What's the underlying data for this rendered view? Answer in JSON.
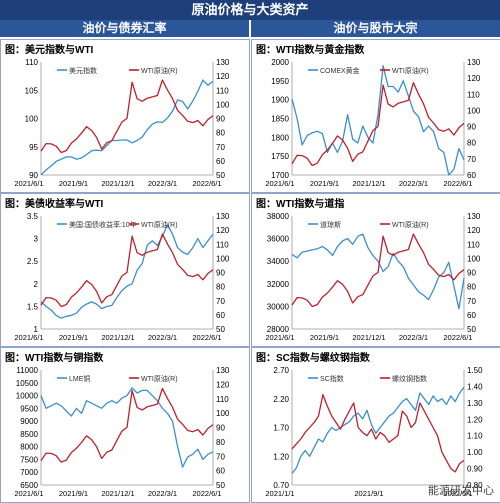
{
  "banner_title": "原油价格与大类资产",
  "sections": [
    "油价与债券汇率",
    "油价与股市大宗"
  ],
  "watermark": "能源研发中心",
  "colors": {
    "blue": "#3a8fd0",
    "red": "#c0202a"
  },
  "chart_data": [
    {
      "type": "line",
      "title": "图：美元指数与WTI",
      "x_ticks": [
        "2021/6/1",
        "2021/9/1",
        "2021/12/1",
        "2022/3/1",
        "2022/6/1"
      ],
      "left_ticks": [
        "110",
        "105",
        "100",
        "95",
        "90"
      ],
      "left_range": [
        90,
        110
      ],
      "right_ticks": [
        "130",
        "120",
        "110",
        "100",
        "90",
        "80",
        "70",
        "60",
        "50"
      ],
      "right_range": [
        50,
        130
      ],
      "series": [
        {
          "name": "美元指数",
          "axis": "left",
          "color": "blue",
          "values": [
            90.0,
            90.9,
            91.6,
            92.4,
            92.8,
            93.2,
            93.2,
            92.8,
            93.0,
            93.6,
            94.3,
            94.4,
            94.3,
            95.2,
            96.1,
            96.1,
            96.2,
            96.2,
            95.7,
            96.1,
            96.7,
            98.0,
            99.0,
            99.4,
            99.3,
            100.1,
            101.3,
            103.3,
            103.0,
            101.7,
            103.1,
            104.8,
            106.8,
            105.9,
            106.6
          ]
        },
        {
          "name": "WTI原油(R)",
          "axis": "right",
          "color": "red",
          "values": [
            66.9,
            72.2,
            72.0,
            70.4,
            65.9,
            67.3,
            72.6,
            75.5,
            79.6,
            84.2,
            81.6,
            76.6,
            68.4,
            72.9,
            74.3,
            81.0,
            87.5,
            90.1,
            115.7,
            104.0,
            102.2,
            104.4,
            105.3,
            106.3,
            117.2,
            110.1,
            104.1,
            95.7,
            92.2,
            88.0,
            87.1,
            88.6,
            84.8,
            89.3,
            92.0
          ]
        }
      ]
    },
    {
      "type": "line",
      "title": "图：WTI指数与黄金指数",
      "x_ticks": [
        "2021/6/1",
        "2021/9/1",
        "2021/12/1",
        "2022/3/1",
        "2022/6/1"
      ],
      "left_ticks": [
        "2000",
        "1950",
        "1900",
        "1850",
        "1800",
        "1750",
        "1700"
      ],
      "left_range": [
        1700,
        2000
      ],
      "right_ticks": [
        "130",
        "120",
        "110",
        "100",
        "90",
        "80",
        "70",
        "60"
      ],
      "right_range": [
        60,
        130
      ],
      "series": [
        {
          "name": "COMEX黄金",
          "axis": "left",
          "color": "blue",
          "values": [
            1902,
            1850,
            1780,
            1805,
            1812,
            1816,
            1810,
            1760,
            1785,
            1760,
            1790,
            1860,
            1795,
            1785,
            1830,
            1800,
            1785,
            1860,
            1990,
            1935,
            1935,
            1920,
            1950,
            1910,
            1870,
            1855,
            1815,
            1830,
            1815,
            1770,
            1760,
            1700,
            1715,
            1770,
            1740
          ]
        },
        {
          "name": "WTI原油(R)",
          "axis": "right",
          "color": "red",
          "values": [
            66.9,
            72.2,
            72.0,
            70.4,
            65.9,
            67.3,
            72.6,
            75.5,
            79.6,
            84.2,
            81.6,
            76.6,
            68.4,
            72.9,
            74.3,
            81.0,
            87.5,
            90.1,
            115.7,
            104.0,
            102.2,
            104.4,
            105.3,
            106.3,
            117.2,
            110.1,
            104.1,
            95.7,
            92.2,
            88.0,
            87.1,
            88.6,
            84.8,
            89.3,
            92.0
          ]
        }
      ]
    },
    {
      "type": "line",
      "title": "图：美债收益率与WTI",
      "x_ticks": [
        "2021/6/1",
        "2021/9/1",
        "2021/12/1",
        "2022/3/1",
        "2022/6/1"
      ],
      "left_ticks": [
        "3.5",
        "3",
        "2.5",
        "2",
        "1.5",
        "1"
      ],
      "left_range": [
        1,
        3.5
      ],
      "right_ticks": [
        "130",
        "120",
        "110",
        "100",
        "90",
        "80",
        "70",
        "60",
        "50"
      ],
      "right_range": [
        50,
        130
      ],
      "series": [
        {
          "name": "美国:国债收益率:10年",
          "axis": "left",
          "color": "blue",
          "values": [
            1.6,
            1.5,
            1.42,
            1.3,
            1.24,
            1.28,
            1.3,
            1.35,
            1.48,
            1.55,
            1.6,
            1.55,
            1.45,
            1.5,
            1.52,
            1.7,
            1.85,
            1.95,
            2.0,
            2.3,
            2.45,
            2.85,
            2.95,
            2.85,
            3.05,
            3.3,
            3.1,
            2.8,
            2.7,
            2.65,
            2.8,
            3.0,
            2.8,
            2.95,
            3.1
          ]
        },
        {
          "name": "WTI原油(R)",
          "axis": "right",
          "color": "red",
          "values": [
            66.9,
            72.2,
            72.0,
            70.4,
            65.9,
            67.3,
            72.6,
            75.5,
            79.6,
            84.2,
            81.6,
            76.6,
            68.4,
            72.9,
            74.3,
            81.0,
            87.5,
            90.1,
            115.7,
            104.0,
            102.2,
            104.4,
            105.3,
            106.3,
            117.2,
            110.1,
            104.1,
            95.7,
            92.2,
            88.0,
            87.1,
            88.6,
            84.8,
            89.3,
            92.0
          ]
        }
      ]
    },
    {
      "type": "line",
      "title": "图：WTI指数与道指",
      "x_ticks": [
        "2021/6/1",
        "2021/9/1",
        "2021/12/1",
        "2022/3/1",
        "2022/6/1"
      ],
      "left_ticks": [
        "38000",
        "36000",
        "34000",
        "32000",
        "30000",
        "28000"
      ],
      "left_range": [
        28000,
        38000
      ],
      "right_ticks": [
        "130",
        "120",
        "110",
        "100",
        "90",
        "80",
        "70",
        "60",
        "50"
      ],
      "right_range": [
        50,
        130
      ],
      "series": [
        {
          "name": "道琼斯",
          "axis": "left",
          "color": "blue",
          "values": [
            34600,
            34300,
            34800,
            34900,
            35000,
            35100,
            35300,
            35000,
            34500,
            35300,
            35800,
            36000,
            35500,
            36200,
            36400,
            35200,
            34500,
            34000,
            33100,
            33500,
            34700,
            34000,
            33500,
            32500,
            31900,
            31300,
            31000,
            30600,
            31500,
            32600,
            33000,
            33900,
            31800,
            29800,
            32500
          ]
        },
        {
          "name": "WTI原油(R)",
          "axis": "right",
          "color": "red",
          "values": [
            66.9,
            72.2,
            72.0,
            70.4,
            65.9,
            67.3,
            72.6,
            75.5,
            79.6,
            84.2,
            81.6,
            76.6,
            68.4,
            72.9,
            74.3,
            81.0,
            87.5,
            90.1,
            115.7,
            104.0,
            102.2,
            104.4,
            105.3,
            106.3,
            117.2,
            110.1,
            104.1,
            95.7,
            92.2,
            88.0,
            87.1,
            88.6,
            84.8,
            89.3,
            92.0
          ]
        }
      ]
    },
    {
      "type": "line",
      "title": "图：WTI指数与铜指数",
      "x_ticks": [
        "2021/6/1",
        "2021/9/1",
        "2021/12/1",
        "2022/3/1",
        "2022/6/1"
      ],
      "left_ticks": [
        "11000",
        "10500",
        "10000",
        "9500",
        "9000",
        "8500",
        "8000",
        "7500",
        "7000",
        "6500"
      ],
      "left_range": [
        6500,
        11000
      ],
      "right_ticks": [
        "130",
        "120",
        "110",
        "100",
        "90",
        "80",
        "70",
        "60",
        "50"
      ],
      "right_range": [
        50,
        130
      ],
      "series": [
        {
          "name": "LME铜",
          "axis": "left",
          "color": "blue",
          "values": [
            10000,
            9500,
            9600,
            9700,
            9600,
            9400,
            9200,
            9500,
            9300,
            9800,
            9700,
            9600,
            9500,
            9700,
            9800,
            9700,
            9900,
            10000,
            10300,
            10100,
            10200,
            10200,
            10000,
            9800,
            9500,
            9300,
            9000,
            8000,
            7200,
            7600,
            7700,
            7900,
            7500,
            7700,
            7800
          ]
        },
        {
          "name": "WTI原油(R)",
          "axis": "right",
          "color": "red",
          "values": [
            66.9,
            72.2,
            72.0,
            70.4,
            65.9,
            67.3,
            72.6,
            75.5,
            79.6,
            84.2,
            81.6,
            76.6,
            68.4,
            72.9,
            74.3,
            81.0,
            87.5,
            90.1,
            115.7,
            104.0,
            102.2,
            104.4,
            105.3,
            106.3,
            117.2,
            110.1,
            104.1,
            95.7,
            92.2,
            88.0,
            87.1,
            88.6,
            84.8,
            89.3,
            92.0
          ]
        }
      ]
    },
    {
      "type": "line",
      "title": "图：SC指数与螺纹钢指数",
      "x_ticks": [
        "2021/1/1",
        "2021/9/1",
        "2022/5/1"
      ],
      "left_ticks": [
        "2.70",
        "2.20",
        "1.70",
        "1.20",
        "0.70"
      ],
      "left_range": [
        0.7,
        2.7
      ],
      "right_ticks": [
        "1.50",
        "1.40",
        "1.30",
        "1.20",
        "1.10",
        "1.00",
        "0.90",
        "0.80"
      ],
      "right_range": [
        0.8,
        1.5
      ],
      "series": [
        {
          "name": "SC指数",
          "axis": "left",
          "color": "blue",
          "values": [
            0.9,
            1.0,
            1.2,
            1.3,
            1.2,
            1.35,
            1.5,
            1.45,
            1.6,
            1.7,
            1.65,
            1.7,
            1.75,
            1.8,
            1.9,
            1.95,
            1.85,
            2.0,
            1.75,
            1.6,
            1.7,
            1.8,
            1.9,
            1.95,
            2.05,
            2.15,
            2.2,
            2.1,
            2.0,
            2.3,
            2.2,
            2.1,
            2.25,
            2.15,
            2.2,
            2.1,
            2.25,
            2.15,
            2.3,
            2.4
          ]
        },
        {
          "name": "螺纹钢指数",
          "axis": "right",
          "color": "red",
          "values": [
            1.02,
            1.05,
            1.08,
            1.12,
            1.15,
            1.18,
            1.22,
            1.35,
            1.28,
            1.22,
            1.18,
            1.14,
            1.2,
            1.25,
            1.3,
            1.15,
            1.12,
            1.1,
            1.14,
            1.08,
            1.12,
            1.1,
            1.06,
            1.08,
            1.1,
            1.25,
            1.22,
            1.15,
            1.18,
            1.3,
            1.25,
            1.2,
            1.15,
            1.1,
            1.0,
            0.95,
            0.9,
            0.88,
            0.93,
            0.95
          ]
        }
      ]
    }
  ]
}
